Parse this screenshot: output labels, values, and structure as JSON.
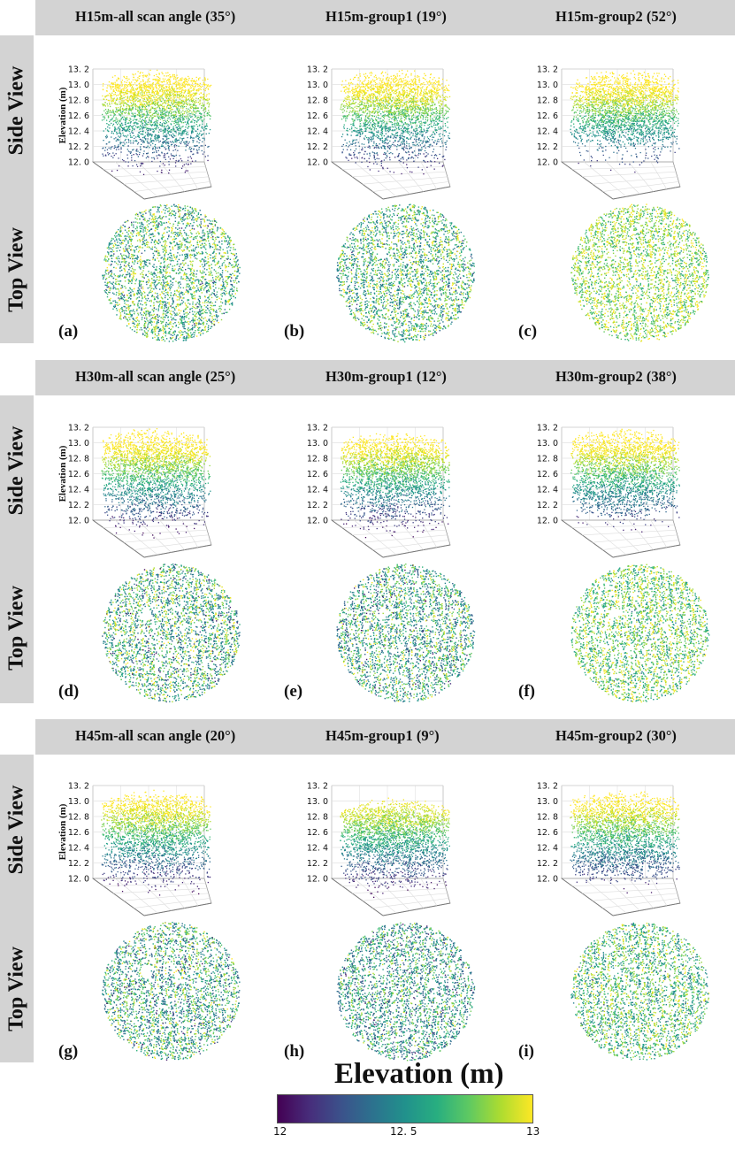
{
  "row_label_side": "Side View",
  "row_label_top": "Top View",
  "legend": {
    "title": "Elevation (m)",
    "ticks": [
      "12",
      "12. 5",
      "13"
    ]
  },
  "chart_data": [
    {
      "type": "scatter",
      "panel": "(a)",
      "title": "H15m-all scan angle (35°)",
      "view": [
        "side",
        "top"
      ],
      "zlabel": "Elevation (m)",
      "zticks": [
        "13. 2",
        "13. 0",
        "12. 8",
        "12. 6",
        "12. 4",
        "12. 2",
        "12. 0"
      ],
      "zlim": [
        12.0,
        13.2
      ],
      "top_elevation_range": [
        12.1,
        13.15
      ],
      "point_bottom_elevation": 12.05,
      "colormap": "viridis",
      "color_range": [
        12,
        13
      ]
    },
    {
      "type": "scatter",
      "panel": "(b)",
      "title": "H15m-group1 (19°)",
      "view": [
        "side",
        "top"
      ],
      "zlabel": "",
      "zticks": [
        "13. 2",
        "13. 0",
        "12. 8",
        "12. 6",
        "12. 4",
        "12. 2",
        "12. 0"
      ],
      "zlim": [
        12.0,
        13.2
      ],
      "top_elevation_range": [
        12.1,
        13.15
      ],
      "point_bottom_elevation": 12.05,
      "colormap": "viridis",
      "color_range": [
        12,
        13
      ]
    },
    {
      "type": "scatter",
      "panel": "(c)",
      "title": "H15m-group2 (52°)",
      "view": [
        "side",
        "top"
      ],
      "zlabel": "",
      "zticks": [
        "13. 2",
        "13. 0",
        "12. 8",
        "12. 6",
        "12. 4",
        "12. 2",
        "12. 0"
      ],
      "zlim": [
        12.0,
        13.2
      ],
      "top_elevation_range": [
        12.45,
        13.15
      ],
      "point_bottom_elevation": 12.1,
      "colormap": "viridis",
      "color_range": [
        12,
        13
      ]
    },
    {
      "type": "scatter",
      "panel": "(d)",
      "title": "H30m-all scan angle (25°)",
      "view": [
        "side",
        "top"
      ],
      "zlabel": "Elevation (m)",
      "zticks": [
        "13. 2",
        "13. 0",
        "12. 8",
        "12. 6",
        "12. 4",
        "12. 2",
        "12. 0"
      ],
      "zlim": [
        12.0,
        13.2
      ],
      "top_elevation_range": [
        12.0,
        13.15
      ],
      "point_bottom_elevation": 12.0,
      "colormap": "viridis",
      "color_range": [
        12,
        13
      ]
    },
    {
      "type": "scatter",
      "panel": "(e)",
      "title": "H30m-group1 (12°)",
      "view": [
        "side",
        "top"
      ],
      "zlabel": "",
      "zticks": [
        "13. 2",
        "13. 0",
        "12. 8",
        "12. 6",
        "12. 4",
        "12. 2",
        "12. 0"
      ],
      "zlim": [
        12.0,
        13.2
      ],
      "top_elevation_range": [
        12.0,
        13.1
      ],
      "point_bottom_elevation": 12.0,
      "colormap": "viridis",
      "color_range": [
        12,
        13
      ]
    },
    {
      "type": "scatter",
      "panel": "(f)",
      "title": "H30m-group2 (38°)",
      "view": [
        "side",
        "top"
      ],
      "zlabel": "",
      "zticks": [
        "13. 2",
        "13. 0",
        "12. 8",
        "12. 6",
        "12. 4",
        "12. 2",
        "12. 0"
      ],
      "zlim": [
        12.0,
        13.2
      ],
      "top_elevation_range": [
        12.3,
        13.15
      ],
      "point_bottom_elevation": 12.05,
      "colormap": "viridis",
      "color_range": [
        12,
        13
      ]
    },
    {
      "type": "scatter",
      "panel": "(g)",
      "title": "H45m-all scan angle (20°)",
      "view": [
        "side",
        "top"
      ],
      "zlabel": "Elevation (m)",
      "zticks": [
        "13. 2",
        "13. 0",
        "12. 8",
        "12. 6",
        "12. 4",
        "12. 2",
        "12. 0"
      ],
      "zlim": [
        12.0,
        13.2
      ],
      "top_elevation_range": [
        12.0,
        13.1
      ],
      "point_bottom_elevation": 12.0,
      "colormap": "viridis",
      "color_range": [
        12,
        13
      ]
    },
    {
      "type": "scatter",
      "panel": "(h)",
      "title": "H45m-group1 (9°)",
      "view": [
        "side",
        "top"
      ],
      "zlabel": "",
      "zticks": [
        "13. 2",
        "13. 0",
        "12. 8",
        "12. 6",
        "12. 4",
        "12. 2",
        "12. 0"
      ],
      "zlim": [
        12.0,
        13.2
      ],
      "top_elevation_range": [
        12.0,
        13.0
      ],
      "point_bottom_elevation": 12.0,
      "colormap": "viridis",
      "color_range": [
        12,
        13
      ]
    },
    {
      "type": "scatter",
      "panel": "(i)",
      "title": "H45m-group2 (30°)",
      "view": [
        "side",
        "top"
      ],
      "zlabel": "",
      "zticks": [
        "13. 2",
        "13. 0",
        "12. 8",
        "12. 6",
        "12. 4",
        "12. 2",
        "12. 0"
      ],
      "zlim": [
        12.0,
        13.2
      ],
      "top_elevation_range": [
        12.2,
        13.1
      ],
      "point_bottom_elevation": 12.05,
      "colormap": "viridis",
      "color_range": [
        12,
        13
      ]
    }
  ]
}
